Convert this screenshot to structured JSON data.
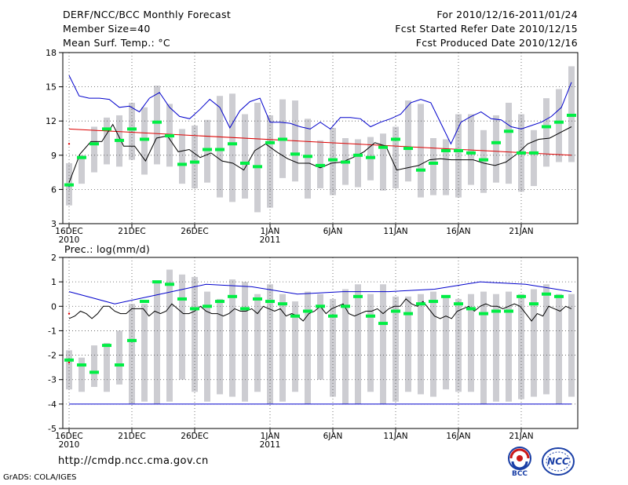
{
  "header": {
    "left": [
      "DERF/NCC/BCC Monthly Forecast",
      "Member Size=40",
      "Mean Surf. Temp.: °C"
    ],
    "right": [
      "For 2010/12/16-2011/01/24",
      "Fcst Started Refer Date 2010/12/15",
      "Fcst Produced Date 2010/12/16"
    ]
  },
  "footer": {
    "url": "http://cmdp.ncc.cma.gov.cn",
    "credit": "GrADS: COLA/IGES"
  },
  "logos": {
    "left": "BCC",
    "right": "NCC"
  },
  "colors": {
    "bar": "#cdcdd2",
    "mean": "#00ee44",
    "ensemble_mean": "#000000",
    "std_band": "#dd0000",
    "extreme": "#0000cc"
  },
  "chart_data": [
    {
      "type": "bar",
      "title": "Mean Surf. Temp.: °C",
      "label": "",
      "ylim": [
        3,
        18
      ],
      "yticks": [
        3,
        6,
        9,
        12,
        15,
        18
      ],
      "xticks": [
        {
          "day": 1,
          "label": "16DEC",
          "sub": "2010"
        },
        {
          "day": 6,
          "label": "21DEC",
          "sub": ""
        },
        {
          "day": 11,
          "label": "26DEC",
          "sub": ""
        },
        {
          "day": 17,
          "label": "1JAN",
          "sub": "2011"
        },
        {
          "day": 22,
          "label": "6JAN",
          "sub": ""
        },
        {
          "day": 27,
          "label": "11JAN",
          "sub": ""
        },
        {
          "day": 32,
          "label": "16JAN",
          "sub": ""
        },
        {
          "day": 37,
          "label": "21JAN",
          "sub": ""
        }
      ],
      "bar_low": [
        4.6,
        6.5,
        7.5,
        8.2,
        8.0,
        8.6,
        7.3,
        8.2,
        8.0,
        6.5,
        6.1,
        6.6,
        5.3,
        4.9,
        5.2,
        4.0,
        4.4,
        7.0,
        6.7,
        5.2,
        6.1,
        5.5,
        6.4,
        6.2,
        6.8,
        5.9,
        6.1,
        6.7,
        5.3,
        5.5,
        5.5,
        5.3,
        6.4,
        5.7,
        6.6,
        6.5,
        5.8,
        6.3,
        8.0,
        8.4,
        8.4
      ],
      "bar_high": [
        8.3,
        9.0,
        11.5,
        12.3,
        12.5,
        13.6,
        13.2,
        15.1,
        13.5,
        11.3,
        11.6,
        12.1,
        14.2,
        14.4,
        12.6,
        13.6,
        12.5,
        13.9,
        13.8,
        12.2,
        10.3,
        11.4,
        10.5,
        10.4,
        10.6,
        10.9,
        11.5,
        13.8,
        13.5,
        10.5,
        10.4,
        12.6,
        12.6,
        11.2,
        12.5,
        13.6,
        12.6,
        11.2,
        14.0,
        14.8,
        16.8
      ],
      "mean": [
        6.4,
        8.8,
        10.0,
        11.3,
        10.3,
        11.3,
        10.4,
        11.9,
        10.7,
        8.2,
        8.4,
        9.5,
        9.5,
        10.0,
        8.3,
        8.0,
        10.1,
        10.4,
        9.1,
        8.9,
        8.1,
        8.6,
        8.4,
        9.0,
        8.8,
        9.7,
        10.4,
        9.6,
        7.7,
        8.3,
        9.4,
        9.4,
        9.2,
        8.6,
        10.1,
        11.1,
        9.2,
        9.2,
        11.5,
        11.9,
        12.5
      ],
      "ens_mean": [
        6.6,
        9.1,
        10.2,
        10.2,
        11.7,
        9.8,
        9.8,
        8.5,
        10.5,
        10.7,
        9.3,
        9.5,
        8.8,
        9.2,
        8.5,
        8.3,
        7.7,
        9.4,
        10.0,
        9.3,
        8.7,
        8.3,
        8.3,
        7.9,
        8.3,
        8.4,
        8.8,
        9.3,
        10.1,
        9.8,
        7.7,
        7.9,
        8.1,
        8.6,
        8.7,
        8.6,
        8.6,
        8.6,
        8.3,
        8.1,
        8.4,
        9.1,
        10.0,
        10.4,
        10.5,
        11.0,
        11.5
      ],
      "upper_std": [
        11.3,
        9.0
      ],
      "lower_std": [
        10.0
      ],
      "max_line": [
        16.0,
        14.2,
        14.0,
        14.0,
        13.9,
        13.2,
        13.3,
        12.8,
        14.0,
        14.5,
        13.2,
        12.4,
        12.2,
        13.0,
        13.9,
        13.2,
        11.4,
        12.9,
        13.7,
        14.0,
        11.9,
        11.9,
        11.8,
        11.5,
        11.3,
        11.9,
        11.3,
        12.3,
        12.3,
        12.2,
        11.5,
        11.9,
        12.2,
        12.6,
        13.6,
        13.9,
        13.6,
        11.8,
        10.0,
        11.9,
        12.4,
        12.8,
        12.2,
        12.1,
        11.5,
        11.3,
        11.6,
        11.9,
        12.4,
        13.2,
        15.4
      ],
      "min_line": [
        6.3
      ]
    },
    {
      "type": "bar",
      "title": "",
      "label": "Prec.: log(mm/d)",
      "ylim": [
        -5,
        2
      ],
      "yticks": [
        -5,
        -4,
        -3,
        -2,
        -1,
        0,
        1,
        2
      ],
      "xticks": [
        {
          "day": 1,
          "label": "16DEC",
          "sub": "2010"
        },
        {
          "day": 6,
          "label": "21DEC",
          "sub": ""
        },
        {
          "day": 11,
          "label": "26DEC",
          "sub": ""
        },
        {
          "day": 17,
          "label": "1JAN",
          "sub": "2011"
        },
        {
          "day": 22,
          "label": "6JAN",
          "sub": ""
        },
        {
          "day": 27,
          "label": "11JAN",
          "sub": ""
        },
        {
          "day": 32,
          "label": "16JAN",
          "sub": ""
        },
        {
          "day": 37,
          "label": "21JAN",
          "sub": ""
        }
      ],
      "bar_low": [
        -3.4,
        -3.5,
        -3.3,
        -3.5,
        -3.2,
        -4.0,
        -3.9,
        -4.0,
        -3.9,
        -3.0,
        -3.5,
        -3.9,
        -3.6,
        -3.7,
        -3.9,
        -3.5,
        -4.0,
        -3.9,
        -3.5,
        -4.0,
        -3.0,
        -3.7,
        -4.0,
        -4.0,
        -3.5,
        -4.0,
        -3.9,
        -3.5,
        -3.6,
        -3.7,
        -3.4,
        -3.5,
        -3.5,
        -4.0,
        -3.9,
        -3.9,
        -3.8,
        -3.7,
        -3.6,
        -4.0,
        -3.7
      ],
      "bar_high": [
        -1.8,
        -2.1,
        -1.6,
        -1.5,
        -1.0,
        0.1,
        0.1,
        1.0,
        1.5,
        1.3,
        1.2,
        0.6,
        0.3,
        1.1,
        1.0,
        0.5,
        0.9,
        0.5,
        0.2,
        0.6,
        0.5,
        0.3,
        0.7,
        0.9,
        0.5,
        0.9,
        0.4,
        0.4,
        0.5,
        0.6,
        0.4,
        0.3,
        0.5,
        0.6,
        0.5,
        0.6,
        0.5,
        0.7,
        0.9,
        0.5,
        0.5
      ],
      "mean": [
        -2.2,
        -2.4,
        -2.7,
        -1.6,
        -2.4,
        -1.4,
        0.2,
        1.0,
        0.9,
        0.3,
        -0.1,
        0.0,
        0.2,
        0.4,
        -0.1,
        0.3,
        0.2,
        0.1,
        -0.4,
        -0.2,
        0.0,
        -0.4,
        0.0,
        0.4,
        -0.4,
        -0.7,
        -0.2,
        -0.3,
        0.1,
        0.2,
        0.4,
        0.1,
        -0.1,
        -0.3,
        -0.2,
        -0.2,
        0.4,
        0.1,
        0.5,
        0.4
      ],
      "ens_mean": [
        -0.5,
        -0.4,
        -0.2,
        -0.3,
        -0.5,
        -0.3,
        0.0,
        0.0,
        -0.2,
        -0.3,
        -0.3,
        -0.1,
        -0.1,
        -0.1,
        -0.4,
        -0.2,
        -0.3,
        -0.2,
        0.1,
        -0.1,
        -0.3,
        -0.3,
        -0.2,
        0.0,
        -0.2,
        -0.3,
        -0.3,
        -0.4,
        -0.3,
        -0.1,
        -0.2,
        -0.2,
        -0.1,
        -0.3,
        0.0,
        -0.1,
        -0.2,
        -0.1,
        -0.4,
        -0.3,
        -0.4,
        -0.6,
        -0.3,
        -0.2,
        0.0,
        -0.3,
        -0.1,
        0.0,
        0.1,
        -0.3,
        -0.4,
        -0.3,
        -0.2,
        -0.2,
        -0.1,
        -0.3,
        -0.1,
        0.0,
        0.0,
        0.3,
        0.1,
        0.0,
        0.2,
        -0.1,
        -0.4,
        -0.5,
        -0.4,
        -0.5,
        -0.2,
        -0.1,
        0.0,
        -0.2,
        0.0,
        0.1,
        0.0,
        0.0,
        -0.1,
        0.0,
        0.1,
        0.0,
        -0.3,
        -0.6,
        -0.3,
        -0.4,
        0.0,
        -0.1,
        -0.2,
        0.0,
        -0.1
      ],
      "upper_std": [
        -0.3
      ],
      "lower_std": [
        -2.3
      ],
      "max_line": [
        0.6,
        0.1,
        0.5,
        0.9,
        0.8,
        0.5,
        0.6,
        0.6,
        0.7,
        1.0,
        0.9,
        0.6
      ],
      "min_line": [
        -4.0,
        -4.0
      ]
    }
  ]
}
